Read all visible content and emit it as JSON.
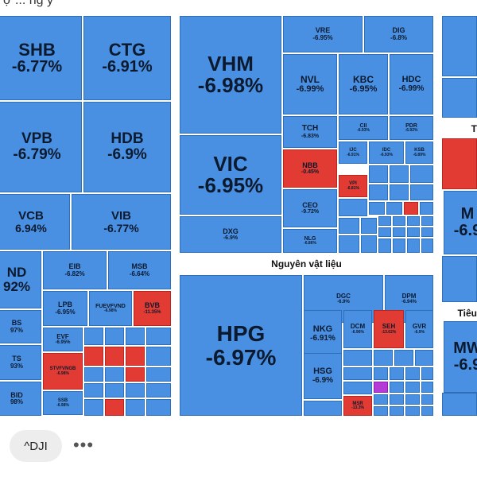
{
  "header_partial_text": "ợ ... ng y",
  "sector_labels": {
    "materials": "Nguyên vật liệu",
    "right_partial_1": "T",
    "right_partial_2": "Tiêu"
  },
  "colors": {
    "decline": "#4a90e2",
    "decline_border": "#2f6fb8",
    "gain": "#e23b33",
    "ceiling": "#b43bd6"
  },
  "tiles": [
    {
      "sym": "SHB",
      "chg": "-6.77%",
      "tone": "blue"
    },
    {
      "sym": "CTG",
      "chg": "-6.91%",
      "tone": "blue"
    },
    {
      "sym": "VPB",
      "chg": "-6.79%",
      "tone": "blue"
    },
    {
      "sym": "HDB",
      "chg": "-6.9%",
      "tone": "blue"
    },
    {
      "sym": "VCB",
      "chg": "6.94%",
      "tone": "blue"
    },
    {
      "sym": "VIB",
      "chg": "-6.77%",
      "tone": "blue"
    },
    {
      "sym": "ND",
      "chg": "92%",
      "tone": "blue"
    },
    {
      "sym": "EIB",
      "chg": "-6.82%",
      "tone": "blue"
    },
    {
      "sym": "MSB",
      "chg": "-6.64%",
      "tone": "blue"
    },
    {
      "sym": "LPB",
      "chg": "-6.95%",
      "tone": "blue"
    },
    {
      "sym": "FUEVFVND",
      "chg": "-6.98%",
      "tone": "blue"
    },
    {
      "sym": "BVB",
      "chg": "-11.35%",
      "tone": "red"
    },
    {
      "sym": "BS",
      "chg": "97%",
      "tone": "blue"
    },
    {
      "sym": "EVF",
      "chg": "-6.95%",
      "tone": "blue"
    },
    {
      "sym": "TS",
      "chg": "93%",
      "tone": "blue"
    },
    {
      "sym": "BID",
      "chg": "98%",
      "tone": "blue"
    },
    {
      "sym": "SSB",
      "chg": "-6.98%",
      "tone": "blue"
    },
    {
      "sym": "STVFVNGB",
      "chg": "-6.98%",
      "tone": "red"
    },
    {
      "sym": "VHM",
      "chg": "-6.98%",
      "tone": "blue"
    },
    {
      "sym": "VRE",
      "chg": "-6.95%",
      "tone": "blue"
    },
    {
      "sym": "DIG",
      "chg": "-6.8%",
      "tone": "blue"
    },
    {
      "sym": "NVL",
      "chg": "-6.99%",
      "tone": "blue"
    },
    {
      "sym": "KBC",
      "chg": "-6.95%",
      "tone": "blue"
    },
    {
      "sym": "HDC",
      "chg": "-6.99%",
      "tone": "blue"
    },
    {
      "sym": "TCH",
      "chg": "-6.83%",
      "tone": "blue"
    },
    {
      "sym": "CII",
      "chg": "-6.93%",
      "tone": "blue"
    },
    {
      "sym": "PDR",
      "chg": "-6.92%",
      "tone": "blue"
    },
    {
      "sym": "VIC",
      "chg": "-6.95%",
      "tone": "blue"
    },
    {
      "sym": "NBB",
      "chg": "-0.45%",
      "tone": "red"
    },
    {
      "sym": "IJC",
      "chg": "-6.91%",
      "tone": "blue"
    },
    {
      "sym": "IDC",
      "chg": "-6.93%",
      "tone": "blue"
    },
    {
      "sym": "KSB",
      "chg": "-6.89%",
      "tone": "blue"
    },
    {
      "sym": "VPI",
      "chg": "-6.81%",
      "tone": "red"
    },
    {
      "sym": "CEO",
      "chg": "-9.72%",
      "tone": "blue"
    },
    {
      "sym": "DXG",
      "chg": "-6.9%",
      "tone": "blue"
    },
    {
      "sym": "NLG",
      "chg": "-6.86%",
      "tone": "blue"
    },
    {
      "sym": "HPG",
      "chg": "-6.97%",
      "tone": "blue"
    },
    {
      "sym": "DGC",
      "chg": "-6.9%",
      "tone": "blue"
    },
    {
      "sym": "DPM",
      "chg": "-6.94%",
      "tone": "blue"
    },
    {
      "sym": "NKG",
      "chg": "-6.91%",
      "tone": "blue"
    },
    {
      "sym": "DCM",
      "chg": "-6.96%",
      "tone": "blue"
    },
    {
      "sym": "SEH",
      "chg": "-13.62%",
      "tone": "red"
    },
    {
      "sym": "GVR",
      "chg": "-6.9%",
      "tone": "blue"
    },
    {
      "sym": "HSG",
      "chg": "-6.9%",
      "tone": "blue"
    },
    {
      "sym": "MSR",
      "chg": "-13.3%",
      "tone": "red"
    },
    {
      "sym": "M",
      "chg": "-6.9",
      "tone": "blue"
    },
    {
      "sym": "MW",
      "chg": "-6.9",
      "tone": "blue"
    }
  ],
  "footer": {
    "ticker_chip": "^DJI",
    "more_label": "•••"
  }
}
